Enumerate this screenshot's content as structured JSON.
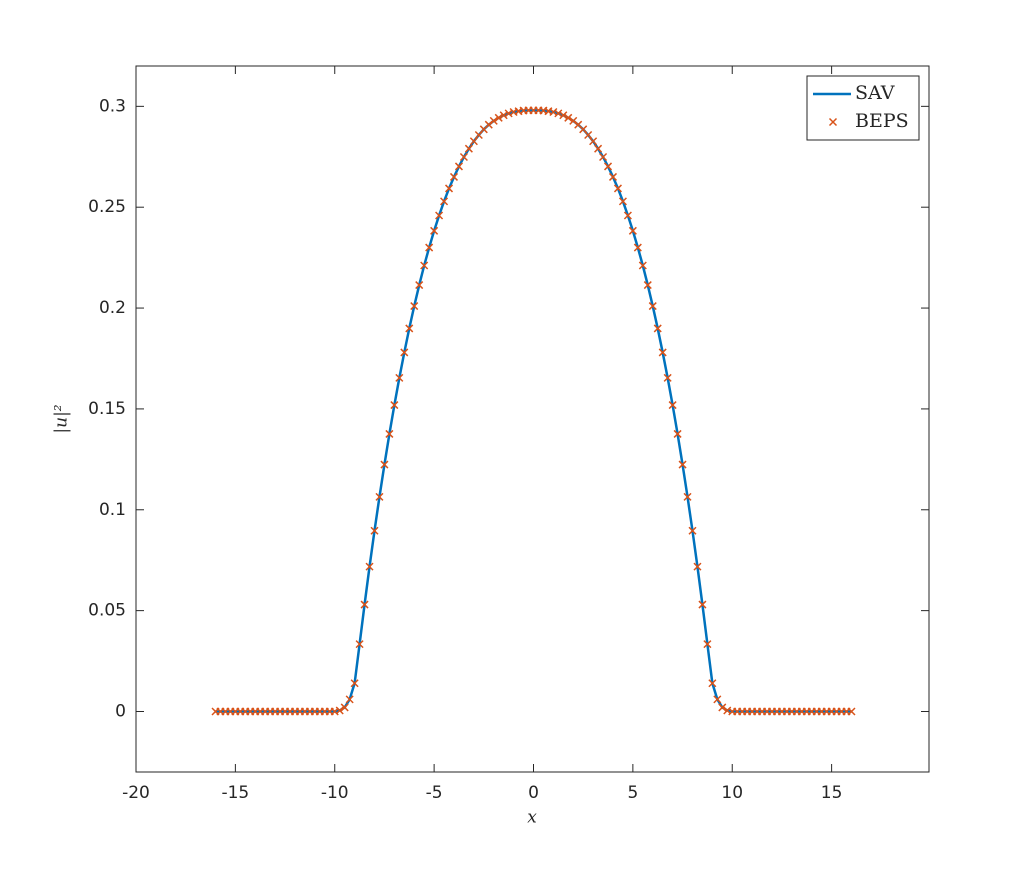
{
  "chart_data": {
    "type": "line-scatter",
    "xlabel": "x",
    "ylabel": "|u|²",
    "x": [
      -16,
      -15.75,
      -15.5,
      -15.25,
      -15,
      -14.75,
      -14.5,
      -14.25,
      -14,
      -13.75,
      -13.5,
      -13.25,
      -13,
      -12.75,
      -12.5,
      -12.25,
      -12,
      -11.75,
      -11.5,
      -11.25,
      -11,
      -10.75,
      -10.5,
      -10.25,
      -10,
      -9.75,
      -9.5,
      -9.25,
      -9,
      -8.75,
      -8.5,
      -8.25,
      -8,
      -7.75,
      -7.5,
      -7.25,
      -7,
      -6.75,
      -6.5,
      -6.25,
      -6,
      -5.75,
      -5.5,
      -5.25,
      -5,
      -4.75,
      -4.5,
      -4.25,
      -4,
      -3.75,
      -3.5,
      -3.25,
      -3,
      -2.75,
      -2.5,
      -2.25,
      -2,
      -1.75,
      -1.5,
      -1.25,
      -1,
      -0.75,
      -0.5,
      -0.25,
      0,
      0.25,
      0.5,
      0.75,
      1,
      1.25,
      1.5,
      1.75,
      2,
      2.25,
      2.5,
      2.75,
      3,
      3.25,
      3.5,
      3.75,
      4,
      4.25,
      4.5,
      4.75,
      5,
      5.25,
      5.5,
      5.75,
      6,
      6.25,
      6.5,
      6.75,
      7,
      7.25,
      7.5,
      7.75,
      8,
      8.25,
      8.5,
      8.75,
      9,
      9.25,
      9.5,
      9.75,
      10,
      10.25,
      10.5,
      10.75,
      11,
      11.25,
      11.5,
      11.75,
      12,
      12.25,
      12.5,
      12.75,
      13,
      13.25,
      13.5,
      13.75,
      14,
      14.25,
      14.5,
      14.75,
      15,
      15.25,
      15.5,
      15.75,
      16
    ],
    "series": [
      {
        "name": "SAV",
        "color": "#0072bd",
        "style": "line",
        "values": [
          0,
          0,
          0,
          0,
          0,
          0,
          0,
          0,
          0,
          0,
          0,
          0,
          0,
          0,
          0,
          0,
          0,
          0,
          0,
          0,
          0,
          0,
          0,
          0,
          0,
          0.0005,
          0.002,
          0.006,
          0.014,
          0.0334,
          0.053,
          0.0718,
          0.0896,
          0.1064,
          0.1224,
          0.1376,
          0.1519,
          0.1654,
          0.178,
          0.1899,
          0.201,
          0.2114,
          0.2211,
          0.23,
          0.2383,
          0.2459,
          0.2529,
          0.2593,
          0.265,
          0.2702,
          0.2749,
          0.279,
          0.2827,
          0.2858,
          0.2886,
          0.2909,
          0.2928,
          0.2943,
          0.2956,
          0.2965,
          0.2972,
          0.2976,
          0.2979,
          0.298,
          0.298,
          0.298,
          0.2979,
          0.2976,
          0.2972,
          0.2965,
          0.2956,
          0.2943,
          0.2928,
          0.2909,
          0.2886,
          0.2858,
          0.2827,
          0.279,
          0.2749,
          0.2702,
          0.265,
          0.2593,
          0.2529,
          0.2459,
          0.2383,
          0.23,
          0.2211,
          0.2114,
          0.201,
          0.1899,
          0.178,
          0.1654,
          0.1519,
          0.1376,
          0.1224,
          0.1064,
          0.0896,
          0.0718,
          0.053,
          0.0334,
          0.014,
          0.006,
          0.002,
          0.0005,
          0,
          0,
          0,
          0,
          0,
          0,
          0,
          0,
          0,
          0,
          0,
          0,
          0,
          0,
          0,
          0,
          0,
          0,
          0,
          0,
          0,
          0,
          0,
          0,
          0
        ]
      },
      {
        "name": "BEPS",
        "color": "#d95319",
        "style": "cross",
        "values": [
          0,
          0,
          0,
          0,
          0,
          0,
          0,
          0,
          0,
          0,
          0,
          0,
          0,
          0,
          0,
          0,
          0,
          0,
          0,
          0,
          0,
          0,
          0,
          0,
          0,
          0.0005,
          0.002,
          0.006,
          0.014,
          0.0334,
          0.053,
          0.0718,
          0.0896,
          0.1064,
          0.1224,
          0.1376,
          0.1519,
          0.1654,
          0.178,
          0.1899,
          0.201,
          0.2114,
          0.2211,
          0.23,
          0.2383,
          0.2459,
          0.2529,
          0.2593,
          0.265,
          0.2702,
          0.2749,
          0.279,
          0.2827,
          0.2858,
          0.2886,
          0.2909,
          0.2928,
          0.2943,
          0.2956,
          0.2965,
          0.2972,
          0.2976,
          0.2979,
          0.298,
          0.298,
          0.298,
          0.2979,
          0.2976,
          0.2972,
          0.2965,
          0.2956,
          0.2943,
          0.2928,
          0.2909,
          0.2886,
          0.2858,
          0.2827,
          0.279,
          0.2749,
          0.2702,
          0.265,
          0.2593,
          0.2529,
          0.2459,
          0.2383,
          0.23,
          0.2211,
          0.2114,
          0.201,
          0.1899,
          0.178,
          0.1654,
          0.1519,
          0.1376,
          0.1224,
          0.1064,
          0.0896,
          0.0718,
          0.053,
          0.0334,
          0.014,
          0.006,
          0.002,
          0.0005,
          0,
          0,
          0,
          0,
          0,
          0,
          0,
          0,
          0,
          0,
          0,
          0,
          0,
          0,
          0,
          0,
          0,
          0,
          0,
          0,
          0,
          0,
          0,
          0,
          0
        ]
      }
    ],
    "xlim": [
      -20,
      19.9
    ],
    "xticks": [
      -20,
      -15,
      -10,
      -5,
      0,
      5,
      10,
      15
    ],
    "ylim": [
      -0.03,
      0.32
    ],
    "yticks": [
      0,
      0.05,
      0.1,
      0.15,
      0.2,
      0.25,
      0.3
    ],
    "legend": "top-right",
    "grid": false
  }
}
